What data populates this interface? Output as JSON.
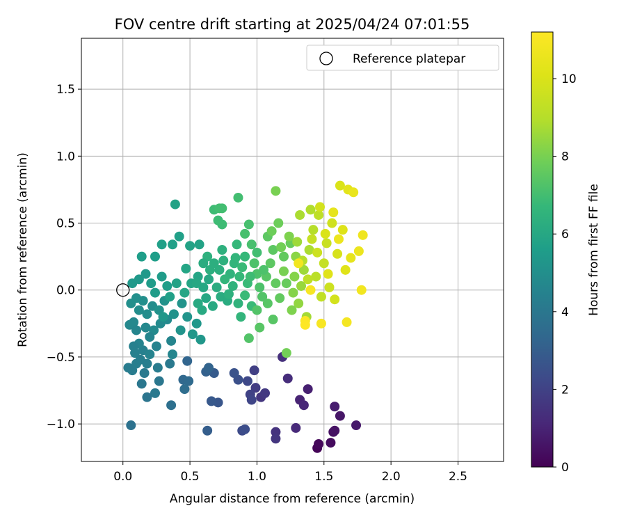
{
  "chart_data": {
    "type": "scatter",
    "title": "FOV centre drift starting at 2025/04/24 07:01:55",
    "xlabel": "Angular distance from reference (arcmin)",
    "ylabel": "Rotation from reference (arcmin)",
    "xlim": [
      -0.31,
      2.84
    ],
    "ylim": [
      -1.28,
      1.88
    ],
    "xticks": [
      "0.0",
      "0.5",
      "1.0",
      "1.5",
      "2.0",
      "2.5"
    ],
    "xtick_values": [
      0,
      0.5,
      1.0,
      1.5,
      2.0,
      2.5
    ],
    "yticks": [
      "−1.0",
      "−0.5",
      "0.0",
      "0.5",
      "1.0",
      "1.5"
    ],
    "ytick_values": [
      -1.0,
      -0.5,
      0,
      0.5,
      1.0,
      1.5
    ],
    "grid": true,
    "legend": {
      "position": "upper right",
      "entries": [
        "Reference platepar"
      ]
    },
    "reference_point": {
      "x": 0.0,
      "y": 0.0,
      "marker": "open circle"
    },
    "colorbar": {
      "label": "Hours from first FF file",
      "range": [
        0,
        11.2
      ],
      "ticks": [
        "0",
        "2",
        "4",
        "6",
        "8",
        "10"
      ],
      "tick_values": [
        0,
        2,
        4,
        6,
        8,
        10
      ],
      "colormap": "viridis"
    },
    "points": [
      {
        "x": 1.45,
        "y": -1.18,
        "h": 0.1
      },
      {
        "x": 1.46,
        "y": -1.15,
        "h": 0.2
      },
      {
        "x": 1.55,
        "y": -1.14,
        "h": 0.3
      },
      {
        "x": 1.57,
        "y": -1.06,
        "h": 0.4
      },
      {
        "x": 1.58,
        "y": -1.05,
        "h": 0.5
      },
      {
        "x": 1.62,
        "y": -0.94,
        "h": 0.6
      },
      {
        "x": 1.74,
        "y": -1.01,
        "h": 0.7
      },
      {
        "x": 1.58,
        "y": -0.87,
        "h": 0.8
      },
      {
        "x": 1.38,
        "y": -0.74,
        "h": 0.9
      },
      {
        "x": 1.32,
        "y": -0.82,
        "h": 1.0
      },
      {
        "x": 1.35,
        "y": -0.86,
        "h": 1.1
      },
      {
        "x": 1.29,
        "y": -1.03,
        "h": 1.2
      },
      {
        "x": 1.23,
        "y": -0.66,
        "h": 1.3
      },
      {
        "x": 1.19,
        "y": -0.5,
        "h": 1.4
      },
      {
        "x": 1.14,
        "y": -1.06,
        "h": 1.5
      },
      {
        "x": 1.14,
        "y": -1.11,
        "h": 1.6
      },
      {
        "x": 1.03,
        "y": -0.8,
        "h": 1.6
      },
      {
        "x": 1.06,
        "y": -0.77,
        "h": 1.7
      },
      {
        "x": 0.99,
        "y": -0.73,
        "h": 1.8
      },
      {
        "x": 0.98,
        "y": -0.6,
        "h": 1.9
      },
      {
        "x": 0.95,
        "y": -0.78,
        "h": 2.0
      },
      {
        "x": 0.96,
        "y": -0.82,
        "h": 2.1
      },
      {
        "x": 0.93,
        "y": -0.68,
        "h": 2.2
      },
      {
        "x": 0.89,
        "y": -1.05,
        "h": 2.3
      },
      {
        "x": 0.91,
        "y": -1.04,
        "h": 2.4
      },
      {
        "x": 0.86,
        "y": -0.67,
        "h": 2.5
      },
      {
        "x": 0.83,
        "y": -0.62,
        "h": 2.6
      },
      {
        "x": 0.71,
        "y": -0.84,
        "h": 2.7
      },
      {
        "x": 0.66,
        "y": -0.83,
        "h": 2.8
      },
      {
        "x": 0.68,
        "y": -0.62,
        "h": 2.9
      },
      {
        "x": 0.63,
        "y": -1.05,
        "h": 3.0
      },
      {
        "x": 0.62,
        "y": -0.61,
        "h": 3.1
      },
      {
        "x": 0.64,
        "y": -0.58,
        "h": 3.2
      },
      {
        "x": 0.48,
        "y": -0.53,
        "h": 3.3
      },
      {
        "x": 0.45,
        "y": -0.67,
        "h": 3.4
      },
      {
        "x": 0.49,
        "y": -0.68,
        "h": 3.5
      },
      {
        "x": 0.46,
        "y": -0.74,
        "h": 3.6
      },
      {
        "x": 0.36,
        "y": -0.86,
        "h": 3.7
      },
      {
        "x": 0.06,
        "y": -1.01,
        "h": 3.8
      },
      {
        "x": 0.18,
        "y": -0.8,
        "h": 3.9
      },
      {
        "x": 0.27,
        "y": -0.68,
        "h": 4.0
      },
      {
        "x": 0.14,
        "y": -0.7,
        "h": 4.0
      },
      {
        "x": 0.24,
        "y": -0.77,
        "h": 4.1
      },
      {
        "x": 0.35,
        "y": -0.55,
        "h": 4.1
      },
      {
        "x": 0.04,
        "y": -0.58,
        "h": 4.2
      },
      {
        "x": 0.07,
        "y": -0.6,
        "h": 4.2
      },
      {
        "x": 0.1,
        "y": -0.55,
        "h": 4.3
      },
      {
        "x": 0.13,
        "y": -0.52,
        "h": 4.3
      },
      {
        "x": 0.18,
        "y": -0.55,
        "h": 4.3
      },
      {
        "x": 0.09,
        "y": -0.47,
        "h": 4.4
      },
      {
        "x": 0.15,
        "y": -0.45,
        "h": 4.4
      },
      {
        "x": 0.2,
        "y": -0.48,
        "h": 4.5
      },
      {
        "x": 0.12,
        "y": -0.4,
        "h": 4.5
      },
      {
        "x": 0.25,
        "y": -0.42,
        "h": 4.5
      },
      {
        "x": 0.36,
        "y": -0.38,
        "h": 4.6
      },
      {
        "x": 0.37,
        "y": -0.48,
        "h": 4.6
      },
      {
        "x": 0.05,
        "y": -0.26,
        "h": 4.7
      },
      {
        "x": 0.08,
        "y": -0.24,
        "h": 4.7
      },
      {
        "x": 0.17,
        "y": -0.28,
        "h": 4.7
      },
      {
        "x": 0.23,
        "y": -0.3,
        "h": 4.8
      },
      {
        "x": 0.28,
        "y": -0.25,
        "h": 4.8
      },
      {
        "x": 0.33,
        "y": -0.22,
        "h": 4.8
      },
      {
        "x": 0.12,
        "y": -0.15,
        "h": 4.9
      },
      {
        "x": 0.18,
        "y": -0.18,
        "h": 4.9
      },
      {
        "x": 0.22,
        "y": -0.12,
        "h": 4.9
      },
      {
        "x": 0.06,
        "y": -0.1,
        "h": 5.0
      },
      {
        "x": 0.1,
        "y": -0.06,
        "h": 5.0
      },
      {
        "x": 0.15,
        "y": -0.08,
        "h": 5.0
      },
      {
        "x": 0.27,
        "y": -0.15,
        "h": 5.1
      },
      {
        "x": 0.31,
        "y": -0.08,
        "h": 5.1
      },
      {
        "x": 0.38,
        "y": -0.18,
        "h": 5.1
      },
      {
        "x": 0.44,
        "y": -0.1,
        "h": 5.2
      },
      {
        "x": 0.48,
        "y": -0.2,
        "h": 5.2
      },
      {
        "x": 0.43,
        "y": -0.3,
        "h": 5.2
      },
      {
        "x": 0.55,
        "y": -0.25,
        "h": 5.3
      },
      {
        "x": 0.52,
        "y": -0.33,
        "h": 5.3
      },
      {
        "x": 0.58,
        "y": -0.37,
        "h": 5.3
      },
      {
        "x": 0.07,
        "y": 0.05,
        "h": 5.4
      },
      {
        "x": 0.12,
        "y": 0.08,
        "h": 5.4
      },
      {
        "x": 0.17,
        "y": 0.12,
        "h": 5.4
      },
      {
        "x": 0.21,
        "y": 0.05,
        "h": 5.5
      },
      {
        "x": 0.24,
        "y": -0.02,
        "h": 5.5
      },
      {
        "x": 0.29,
        "y": 0.1,
        "h": 5.5
      },
      {
        "x": 0.33,
        "y": 0.03,
        "h": 5.6
      },
      {
        "x": 0.14,
        "y": 0.25,
        "h": 5.6
      },
      {
        "x": 0.24,
        "y": 0.25,
        "h": 5.6
      },
      {
        "x": 0.29,
        "y": 0.34,
        "h": 5.7
      },
      {
        "x": 0.42,
        "y": 0.4,
        "h": 5.7
      },
      {
        "x": 0.37,
        "y": 0.34,
        "h": 5.7
      },
      {
        "x": 0.5,
        "y": 0.33,
        "h": 5.8
      },
      {
        "x": 0.57,
        "y": 0.34,
        "h": 5.8
      },
      {
        "x": 0.39,
        "y": 0.64,
        "h": 5.8
      },
      {
        "x": 0.47,
        "y": 0.16,
        "h": 5.9
      },
      {
        "x": 0.51,
        "y": 0.05,
        "h": 5.9
      },
      {
        "x": 0.56,
        "y": 0.1,
        "h": 5.9
      },
      {
        "x": 0.6,
        "y": 0.02,
        "h": 6.0
      },
      {
        "x": 0.64,
        "y": 0.08,
        "h": 6.0
      },
      {
        "x": 0.62,
        "y": -0.06,
        "h": 6.0
      },
      {
        "x": 0.67,
        "y": -0.12,
        "h": 6.1
      },
      {
        "x": 0.56,
        "y": -0.1,
        "h": 6.1
      },
      {
        "x": 0.59,
        "y": -0.15,
        "h": 6.1
      },
      {
        "x": 0.73,
        "y": -0.05,
        "h": 6.2
      },
      {
        "x": 0.78,
        "y": -0.08,
        "h": 6.2
      },
      {
        "x": 0.7,
        "y": 0.02,
        "h": 6.2
      },
      {
        "x": 0.65,
        "y": 0.15,
        "h": 6.3
      },
      {
        "x": 0.68,
        "y": 0.2,
        "h": 6.3
      },
      {
        "x": 0.72,
        "y": 0.15,
        "h": 6.3
      },
      {
        "x": 0.63,
        "y": 0.25,
        "h": 6.4
      },
      {
        "x": 0.74,
        "y": 0.3,
        "h": 6.4
      },
      {
        "x": 0.8,
        "y": 0.12,
        "h": 6.5
      },
      {
        "x": 0.82,
        "y": 0.03,
        "h": 6.5
      },
      {
        "x": 0.86,
        "y": -0.1,
        "h": 6.5
      },
      {
        "x": 0.88,
        "y": -0.2,
        "h": 6.6
      },
      {
        "x": 0.76,
        "y": 0.08,
        "h": 6.6
      },
      {
        "x": 0.83,
        "y": 0.2,
        "h": 6.6
      },
      {
        "x": 0.87,
        "y": 0.1,
        "h": 6.7
      },
      {
        "x": 0.85,
        "y": 0.34,
        "h": 6.7
      },
      {
        "x": 0.91,
        "y": 0.25,
        "h": 6.7
      },
      {
        "x": 0.93,
        "y": 0.05,
        "h": 6.8
      },
      {
        "x": 0.96,
        "y": -0.12,
        "h": 6.8
      },
      {
        "x": 0.91,
        "y": -0.04,
        "h": 6.8
      },
      {
        "x": 0.71,
        "y": 0.52,
        "h": 6.9
      },
      {
        "x": 0.74,
        "y": 0.49,
        "h": 6.9
      },
      {
        "x": 0.68,
        "y": 0.6,
        "h": 6.9
      },
      {
        "x": 0.72,
        "y": 0.61,
        "h": 7.0
      },
      {
        "x": 0.74,
        "y": 0.61,
        "h": 7.0
      },
      {
        "x": 0.86,
        "y": 0.69,
        "h": 7.0
      },
      {
        "x": 0.94,
        "y": 0.49,
        "h": 7.1
      },
      {
        "x": 0.91,
        "y": 0.42,
        "h": 7.1
      },
      {
        "x": 0.96,
        "y": 0.34,
        "h": 7.1
      },
      {
        "x": 0.98,
        "y": 0.2,
        "h": 7.2
      },
      {
        "x": 1.0,
        "y": 0.12,
        "h": 7.2
      },
      {
        "x": 1.02,
        "y": 0.02,
        "h": 7.2
      },
      {
        "x": 1.04,
        "y": -0.05,
        "h": 7.3
      },
      {
        "x": 1.0,
        "y": -0.15,
        "h": 7.3
      },
      {
        "x": 0.94,
        "y": -0.36,
        "h": 7.3
      },
      {
        "x": 1.02,
        "y": -0.28,
        "h": 7.4
      },
      {
        "x": 1.07,
        "y": 0.1,
        "h": 7.4
      },
      {
        "x": 1.1,
        "y": 0.2,
        "h": 7.5
      },
      {
        "x": 1.12,
        "y": 0.3,
        "h": 7.5
      },
      {
        "x": 1.08,
        "y": 0.4,
        "h": 7.5
      },
      {
        "x": 1.14,
        "y": 0.05,
        "h": 7.6
      },
      {
        "x": 1.17,
        "y": -0.06,
        "h": 7.6
      },
      {
        "x": 1.2,
        "y": 0.25,
        "h": 7.6
      },
      {
        "x": 1.22,
        "y": 0.05,
        "h": 7.7
      },
      {
        "x": 1.25,
        "y": 0.35,
        "h": 7.7
      },
      {
        "x": 1.16,
        "y": 0.5,
        "h": 7.8
      },
      {
        "x": 1.11,
        "y": 0.44,
        "h": 7.8
      },
      {
        "x": 1.22,
        "y": -0.47,
        "h": 7.9
      },
      {
        "x": 1.14,
        "y": 0.74,
        "h": 8.0
      },
      {
        "x": 1.26,
        "y": -0.15,
        "h": 8.1
      },
      {
        "x": 1.28,
        "y": 0.1,
        "h": 8.2
      },
      {
        "x": 1.29,
        "y": 0.25,
        "h": 8.3
      },
      {
        "x": 1.31,
        "y": -0.1,
        "h": 8.4
      },
      {
        "x": 1.33,
        "y": 0.03,
        "h": 8.5
      },
      {
        "x": 1.35,
        "y": 0.15,
        "h": 8.6
      },
      {
        "x": 1.37,
        "y": -0.2,
        "h": 8.7
      },
      {
        "x": 1.39,
        "y": 0.3,
        "h": 8.8
      },
      {
        "x": 1.4,
        "y": 0.6,
        "h": 8.9
      },
      {
        "x": 1.42,
        "y": 0.45,
        "h": 9.0
      },
      {
        "x": 1.44,
        "y": 0.1,
        "h": 9.1
      },
      {
        "x": 1.46,
        "y": 0.56,
        "h": 9.2
      },
      {
        "x": 1.48,
        "y": -0.05,
        "h": 9.3
      },
      {
        "x": 1.5,
        "y": 0.2,
        "h": 9.4
      },
      {
        "x": 1.52,
        "y": 0.35,
        "h": 9.5
      },
      {
        "x": 1.54,
        "y": 0.02,
        "h": 9.6
      },
      {
        "x": 1.56,
        "y": 0.5,
        "h": 9.7
      },
      {
        "x": 1.58,
        "y": -0.07,
        "h": 9.8
      },
      {
        "x": 1.6,
        "y": 0.27,
        "h": 9.9
      },
      {
        "x": 1.62,
        "y": 0.78,
        "h": 10.0
      },
      {
        "x": 1.64,
        "y": 0.45,
        "h": 10.1
      },
      {
        "x": 1.66,
        "y": 0.15,
        "h": 10.2
      },
      {
        "x": 1.68,
        "y": 0.75,
        "h": 10.3
      },
      {
        "x": 1.7,
        "y": 0.24,
        "h": 10.4
      },
      {
        "x": 1.72,
        "y": 0.73,
        "h": 10.5
      },
      {
        "x": 1.76,
        "y": 0.29,
        "h": 10.6
      },
      {
        "x": 1.79,
        "y": 0.41,
        "h": 10.7
      },
      {
        "x": 1.78,
        "y": 0.0,
        "h": 10.8
      },
      {
        "x": 1.67,
        "y": -0.24,
        "h": 10.9
      },
      {
        "x": 1.48,
        "y": -0.25,
        "h": 11.0
      },
      {
        "x": 1.36,
        "y": -0.23,
        "h": 11.1
      },
      {
        "x": 1.36,
        "y": -0.26,
        "h": 11.2
      },
      {
        "x": 1.18,
        "y": 0.32,
        "h": 7.9
      },
      {
        "x": 1.2,
        "y": 0.14,
        "h": 8.0
      },
      {
        "x": 1.24,
        "y": 0.4,
        "h": 8.1
      },
      {
        "x": 1.27,
        "y": -0.02,
        "h": 8.2
      },
      {
        "x": 1.3,
        "y": 0.36,
        "h": 8.6
      },
      {
        "x": 1.32,
        "y": 0.56,
        "h": 8.8
      },
      {
        "x": 1.34,
        "y": 0.22,
        "h": 9.0
      },
      {
        "x": 1.38,
        "y": 0.08,
        "h": 9.2
      },
      {
        "x": 1.41,
        "y": 0.38,
        "h": 9.4
      },
      {
        "x": 1.45,
        "y": 0.28,
        "h": 9.6
      },
      {
        "x": 1.47,
        "y": 0.62,
        "h": 9.8
      },
      {
        "x": 1.51,
        "y": 0.42,
        "h": 10.0
      },
      {
        "x": 1.53,
        "y": 0.12,
        "h": 10.2
      },
      {
        "x": 1.57,
        "y": 0.58,
        "h": 10.4
      },
      {
        "x": 1.61,
        "y": 0.38,
        "h": 10.6
      },
      {
        "x": 1.31,
        "y": 0.2,
        "h": 10.8
      },
      {
        "x": 1.4,
        "y": 0.0,
        "h": 11.0
      },
      {
        "x": 1.0,
        "y": 0.28,
        "h": 7.0
      },
      {
        "x": 1.05,
        "y": 0.15,
        "h": 7.2
      },
      {
        "x": 0.95,
        "y": 0.1,
        "h": 6.9
      },
      {
        "x": 0.89,
        "y": 0.17,
        "h": 6.8
      },
      {
        "x": 0.79,
        "y": -0.03,
        "h": 6.4
      },
      {
        "x": 0.84,
        "y": 0.24,
        "h": 6.6
      },
      {
        "x": 0.75,
        "y": 0.22,
        "h": 6.4
      },
      {
        "x": 0.6,
        "y": 0.2,
        "h": 6.2
      },
      {
        "x": 0.55,
        "y": 0.05,
        "h": 6.0
      },
      {
        "x": 0.46,
        "y": -0.02,
        "h": 5.9
      },
      {
        "x": 0.4,
        "y": 0.05,
        "h": 5.8
      },
      {
        "x": 0.35,
        "y": -0.05,
        "h": 5.7
      },
      {
        "x": 0.3,
        "y": -0.2,
        "h": 5.3
      },
      {
        "x": 0.2,
        "y": -0.35,
        "h": 4.6
      },
      {
        "x": 0.1,
        "y": -0.3,
        "h": 4.6
      },
      {
        "x": 0.16,
        "y": -0.62,
        "h": 4.1
      },
      {
        "x": 0.08,
        "y": -0.42,
        "h": 4.4
      },
      {
        "x": 0.26,
        "y": -0.58,
        "h": 4.2
      },
      {
        "x": 1.12,
        "y": -0.22,
        "h": 7.4
      },
      {
        "x": 1.08,
        "y": -0.1,
        "h": 7.4
      }
    ]
  }
}
